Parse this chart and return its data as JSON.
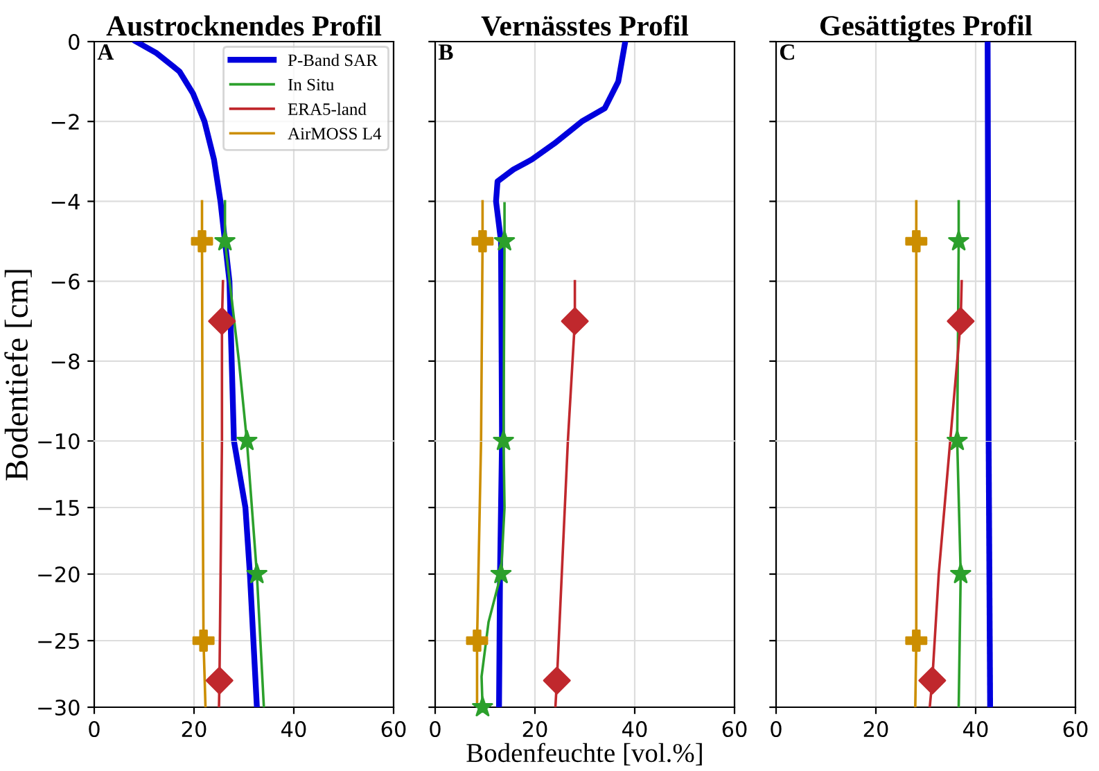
{
  "chart_data": [
    {
      "type": "line",
      "title": "Austrocknendes Profil",
      "annotations": [
        "A"
      ],
      "xlim": [
        0,
        60
      ],
      "xticks": [
        0,
        20,
        40,
        60
      ],
      "ylim": [
        -10,
        0
      ],
      "yticks": [
        0,
        -2,
        -4,
        -6,
        -8,
        -10
      ],
      "grid": true,
      "legend": "top right",
      "tick_labels": "y",
      "series": [
        {
          "name": "P-Band SAR",
          "color": "#0000dd",
          "x": [
            8.4,
            12.5,
            15.3,
            17.1,
            19.8,
            22.1,
            24.0,
            25.3,
            26.2,
            27.1,
            28.0
          ],
          "values": [
            0,
            -0.29,
            -0.57,
            -0.75,
            -1.3,
            -2,
            -2.95,
            -4,
            -5,
            -6,
            -10
          ]
        },
        {
          "name": "In Situ",
          "color": "#2ca02c",
          "x": [
            26.2,
            26.2,
            29.0,
            30.6
          ],
          "values": [
            -4,
            -5,
            -8,
            -10
          ]
        },
        {
          "name": "ERA5-land",
          "color": "#c0282d",
          "x": [
            25.8,
            25.6,
            25.6
          ],
          "values": [
            -6,
            -7,
            -10
          ]
        },
        {
          "name": "AirMOSS L4",
          "color": "#cc8e00",
          "x": [
            21.6,
            21.6,
            21.7
          ],
          "values": [
            -4,
            -5,
            -10
          ]
        },
        {
          "type": "scatter",
          "marker": "star",
          "color": "#2ca02c",
          "x": [
            26.2,
            30.6
          ],
          "values": [
            -5,
            -10
          ]
        },
        {
          "type": "scatter",
          "marker": "diamond",
          "color": "#c0282d",
          "x": [
            25.6
          ],
          "values": [
            -7
          ]
        },
        {
          "type": "scatter",
          "marker": "cross",
          "color": "#cc8e00",
          "x": [
            21.6
          ],
          "values": [
            -5
          ]
        }
      ]
    },
    {
      "type": "line",
      "title": "Vernässtes Profil",
      "annotations": [
        "B"
      ],
      "xlim": [
        0,
        60
      ],
      "xticks": [
        0,
        20,
        40,
        60
      ],
      "ylim": [
        -10,
        0
      ],
      "yticks": [
        0,
        -2,
        -4,
        -6,
        -8,
        -10
      ],
      "grid": true,
      "tick_labels": false,
      "series": [
        {
          "color": "#0000dd",
          "x": [
            38.1,
            36.7,
            34.0,
            29.4,
            23.9,
            19.4,
            15.7,
            12.5,
            12.2,
            13.2,
            13.4
          ],
          "values": [
            0,
            -1,
            -1.67,
            -2,
            -2.55,
            -2.95,
            -3.2,
            -3.5,
            -4,
            -5,
            -10
          ]
        },
        {
          "color": "#2ca02c",
          "x": [
            13.9,
            13.9,
            13.7
          ],
          "values": [
            -4.05,
            -5,
            -10
          ]
        },
        {
          "color": "#c0282d",
          "x": [
            28.0,
            28.0,
            26.6
          ],
          "values": [
            -6,
            -7,
            -10
          ]
        },
        {
          "color": "#cc8e00",
          "x": [
            9.5,
            9.5,
            9.2
          ],
          "values": [
            -4,
            -5,
            -10
          ]
        },
        {
          "type": "scatter",
          "marker": "star",
          "color": "#2ca02c",
          "x": [
            13.9,
            13.7
          ],
          "values": [
            -5,
            -10
          ]
        },
        {
          "type": "scatter",
          "marker": "diamond",
          "color": "#c0282d",
          "x": [
            28.0
          ],
          "values": [
            -7
          ]
        },
        {
          "type": "scatter",
          "marker": "cross",
          "color": "#cc8e00",
          "x": [
            9.5
          ],
          "values": [
            -5
          ]
        }
      ]
    },
    {
      "type": "line",
      "title": "Gesättigtes Profil",
      "annotations": [
        "C"
      ],
      "xlim": [
        0,
        60
      ],
      "xticks": [
        0,
        20,
        40,
        60
      ],
      "ylim": [
        -10,
        0
      ],
      "yticks": [
        0,
        -2,
        -4,
        -6,
        -8,
        -10
      ],
      "grid": true,
      "tick_labels": false,
      "series": [
        {
          "color": "#0000dd",
          "x": [
            42.4,
            42.6
          ],
          "values": [
            0,
            -10
          ]
        },
        {
          "color": "#2ca02c",
          "x": [
            36.6,
            36.6,
            36.3
          ],
          "values": [
            -4,
            -5,
            -10
          ]
        },
        {
          "color": "#c0282d",
          "x": [
            37.2,
            37.0,
            34.9
          ],
          "values": [
            -6,
            -7,
            -10
          ]
        },
        {
          "color": "#cc8e00",
          "x": [
            28.1,
            28.1,
            28.1
          ],
          "values": [
            -4,
            -5,
            -10
          ]
        },
        {
          "type": "scatter",
          "marker": "star",
          "color": "#2ca02c",
          "x": [
            36.6,
            36.3
          ],
          "values": [
            -5,
            -10
          ]
        },
        {
          "type": "scatter",
          "marker": "diamond",
          "color": "#c0282d",
          "x": [
            37.0
          ],
          "values": [
            -7
          ]
        },
        {
          "type": "scatter",
          "marker": "cross",
          "color": "#cc8e00",
          "x": [
            28.1
          ],
          "values": [
            -5
          ]
        }
      ]
    },
    {
      "type": "line",
      "ylabel": "Bodentiefe [cm]",
      "xlim": [
        0,
        60
      ],
      "xticks": [
        0,
        20,
        40,
        60
      ],
      "ylim": [
        -30,
        -10
      ],
      "yticks": [
        -15,
        -20,
        -25,
        -30
      ],
      "grid": true,
      "series": [
        {
          "color": "#0000dd",
          "x": [
            28.0,
            30.3,
            31.2,
            31.9,
            32.6
          ],
          "values": [
            -10,
            -15,
            -20,
            -25,
            -30
          ]
        },
        {
          "color": "#2ca02c",
          "x": [
            30.6,
            32.6,
            34.0
          ],
          "values": [
            -10,
            -20,
            -30
          ]
        },
        {
          "color": "#c0282d",
          "x": [
            25.6,
            25.1,
            25.0
          ],
          "values": [
            -10,
            -28,
            -30
          ]
        },
        {
          "color": "#cc8e00",
          "x": [
            21.7,
            21.9,
            22.3
          ],
          "values": [
            -10,
            -25,
            -30
          ]
        },
        {
          "type": "scatter",
          "marker": "star",
          "color": "#2ca02c",
          "x": [
            32.6
          ],
          "values": [
            -20
          ]
        },
        {
          "type": "scatter",
          "marker": "diamond",
          "color": "#c0282d",
          "x": [
            25.1
          ],
          "values": [
            -28
          ]
        },
        {
          "type": "scatter",
          "marker": "cross",
          "color": "#cc8e00",
          "x": [
            21.9
          ],
          "values": [
            -25
          ]
        }
      ]
    },
    {
      "type": "line",
      "xlabel": "Bodenfeuchte [vol.%]",
      "xlim": [
        0,
        60
      ],
      "xticks": [
        0,
        20,
        40,
        60
      ],
      "ylim": [
        -30,
        -10
      ],
      "yticks": [
        -15,
        -20,
        -25,
        -30
      ],
      "grid": true,
      "tick_labels": "x",
      "series": [
        {
          "color": "#0000dd",
          "x": [
            13.4,
            13.0,
            12.8
          ],
          "values": [
            -10,
            -20,
            -30
          ]
        },
        {
          "color": "#2ca02c",
          "x": [
            13.7,
            13.9,
            13.2,
            10.7,
            9.3,
            9.5
          ],
          "values": [
            -10,
            -15,
            -20,
            -23.6,
            -27.7,
            -30
          ]
        },
        {
          "color": "#c0282d",
          "x": [
            26.6,
            24.4,
            24.1
          ],
          "values": [
            -10,
            -28,
            -30
          ]
        },
        {
          "color": "#cc8e00",
          "x": [
            9.2,
            8.4,
            8.4
          ],
          "values": [
            -10,
            -25,
            -30
          ]
        },
        {
          "type": "scatter",
          "marker": "star",
          "color": "#2ca02c",
          "x": [
            13.2,
            9.5
          ],
          "values": [
            -20,
            -30
          ]
        },
        {
          "type": "scatter",
          "marker": "diamond",
          "color": "#c0282d",
          "x": [
            24.4
          ],
          "values": [
            -28
          ]
        },
        {
          "type": "scatter",
          "marker": "cross",
          "color": "#cc8e00",
          "x": [
            8.4
          ],
          "values": [
            -25
          ]
        }
      ]
    },
    {
      "type": "line",
      "xlim": [
        0,
        60
      ],
      "xticks": [
        0,
        20,
        40,
        60
      ],
      "ylim": [
        -30,
        -10
      ],
      "yticks": [
        -15,
        -20,
        -25,
        -30
      ],
      "grid": true,
      "tick_labels": "x",
      "series": [
        {
          "color": "#0000dd",
          "x": [
            42.6,
            42.9
          ],
          "values": [
            -10,
            -30
          ]
        },
        {
          "color": "#2ca02c",
          "x": [
            36.3,
            37.0,
            36.6
          ],
          "values": [
            -10,
            -20,
            -30
          ]
        },
        {
          "color": "#c0282d",
          "x": [
            34.9,
            32.6,
            31.3,
            30.8
          ],
          "values": [
            -10,
            -20,
            -28,
            -30
          ]
        },
        {
          "color": "#cc8e00",
          "x": [
            28.1,
            28.1,
            27.9
          ],
          "values": [
            -10,
            -25,
            -30
          ]
        },
        {
          "type": "scatter",
          "marker": "star",
          "color": "#2ca02c",
          "x": [
            37.0
          ],
          "values": [
            -20
          ]
        },
        {
          "type": "scatter",
          "marker": "diamond",
          "color": "#c0282d",
          "x": [
            31.3
          ],
          "values": [
            -28
          ]
        },
        {
          "type": "scatter",
          "marker": "cross",
          "color": "#cc8e00",
          "x": [
            28.1
          ],
          "values": [
            -25
          ]
        }
      ]
    }
  ]
}
